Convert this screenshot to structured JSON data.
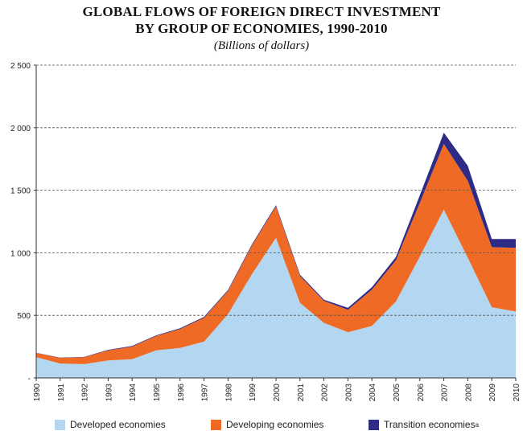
{
  "title_line1": "GLOBAL FLOWS OF FOREIGN DIRECT INVESTMENT",
  "title_line2": "BY GROUP OF ECONOMIES, 1990-2010",
  "subtitle": "(Billions of dollars)",
  "colors": {
    "developed": "#b3d7f0",
    "developing": "#ef6a24",
    "transition": "#2d2b85",
    "grid": "#555555"
  },
  "chart_data": {
    "type": "area",
    "stacked": true,
    "title": "GLOBAL FLOWS OF FOREIGN DIRECT INVESTMENT BY GROUP OF ECONOMIES, 1990-2010",
    "subtitle": "(Billions of dollars)",
    "xlabel": "",
    "ylabel": "",
    "ylim": [
      0,
      2500
    ],
    "yticks": [
      0,
      500,
      1000,
      1500,
      2000,
      2500
    ],
    "ytick_labels": [
      "-",
      "500",
      "1 000",
      "1 500",
      "2 000",
      "2 500"
    ],
    "grid": true,
    "legend_position": "bottom",
    "categories": [
      "1990",
      "1991",
      "1992",
      "1993",
      "1994",
      "1995",
      "1996",
      "1997",
      "1998",
      "1999",
      "2000",
      "2001",
      "2002",
      "2003",
      "2004",
      "2005",
      "2006",
      "2007",
      "2008",
      "2009",
      "2010"
    ],
    "series": [
      {
        "name": "Developed economies",
        "values": [
          165,
          115,
          110,
          140,
          150,
          220,
          240,
          290,
          510,
          830,
          1120,
          600,
          440,
          365,
          415,
          610,
          970,
          1345,
          960,
          565,
          530
        ]
      },
      {
        "name": "Developing economies",
        "values": [
          35,
          45,
          55,
          80,
          100,
          115,
          150,
          190,
          185,
          230,
          250,
          215,
          175,
          180,
          290,
          330,
          430,
          525,
          615,
          480,
          510
        ]
      },
      {
        "name": "Transition economies",
        "values": [
          1,
          2,
          3,
          4,
          5,
          5,
          7,
          8,
          8,
          9,
          10,
          10,
          10,
          15,
          20,
          25,
          60,
          90,
          120,
          65,
          70
        ]
      }
    ]
  },
  "legend": {
    "developed": "Developed economies",
    "developing": "Developing economies",
    "transition": "Transition economies",
    "transition_note": "a"
  }
}
